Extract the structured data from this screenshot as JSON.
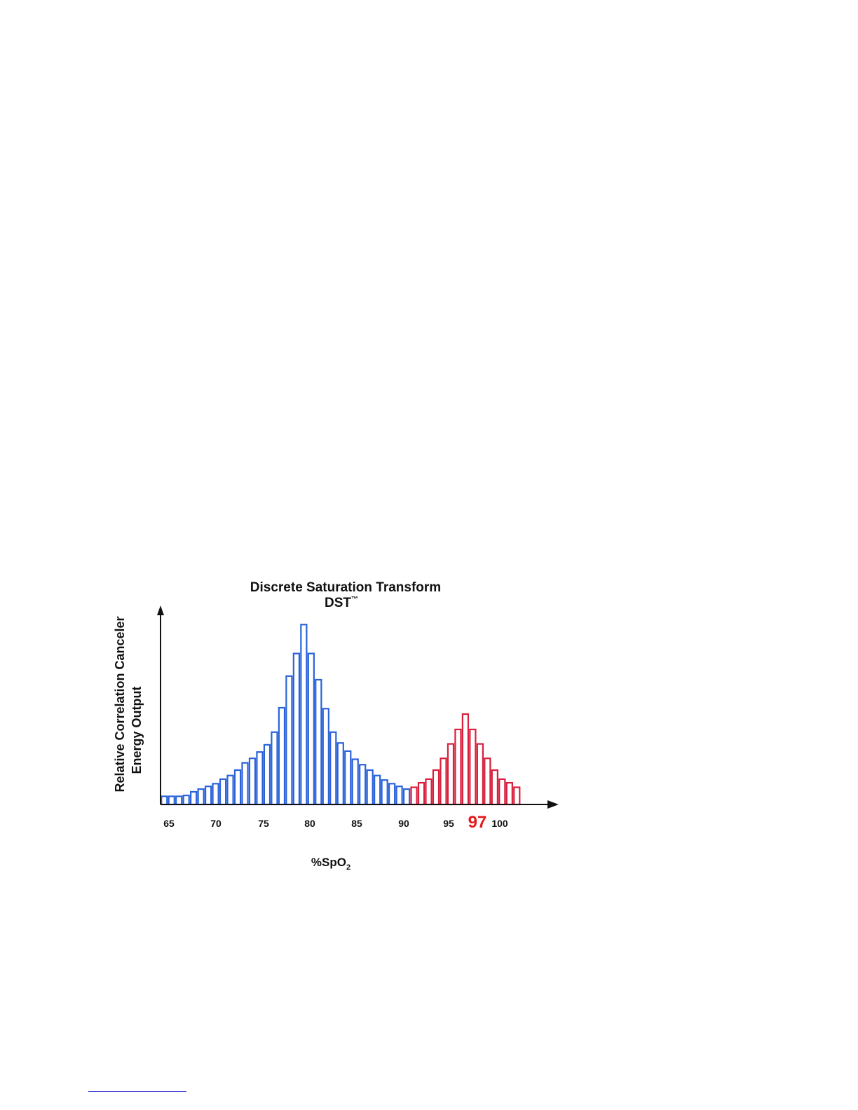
{
  "chart_data": {
    "type": "bar",
    "title": "Discrete Saturation Transform",
    "subtitle": "DST",
    "subtitle_mark": "™",
    "ylabel": [
      "Relative Correlation Canceler",
      "Energy Output"
    ],
    "xlabel": "%SpO",
    "xlabel_sub": "2",
    "x_ticks": [
      "65",
      "70",
      "75",
      "80",
      "85",
      "90",
      "95",
      "100"
    ],
    "highlight_label": "97",
    "colors": {
      "blue": "#2b63d9",
      "red": "#d81f3c",
      "highlight": "#e31a1a"
    },
    "ylim": [
      0,
      100
    ],
    "series": [
      {
        "color": "#2b63d9",
        "values": [
          4.5,
          4.5,
          4.5,
          5,
          7,
          8.5,
          10,
          11.5,
          14,
          16,
          19,
          23,
          25.5,
          29,
          33,
          40,
          53.5,
          71,
          83.5,
          99.5,
          83.5,
          69,
          53,
          40,
          34,
          29.5,
          25,
          22,
          19,
          16,
          13.5,
          11.5,
          10,
          8.5
        ]
      },
      {
        "color": "#d81f3c",
        "values": [
          9.5,
          12,
          14,
          19,
          25.5,
          33.5,
          41.5,
          50,
          41.5,
          33.5,
          25.5,
          19,
          14,
          12,
          9.5
        ]
      }
    ]
  }
}
